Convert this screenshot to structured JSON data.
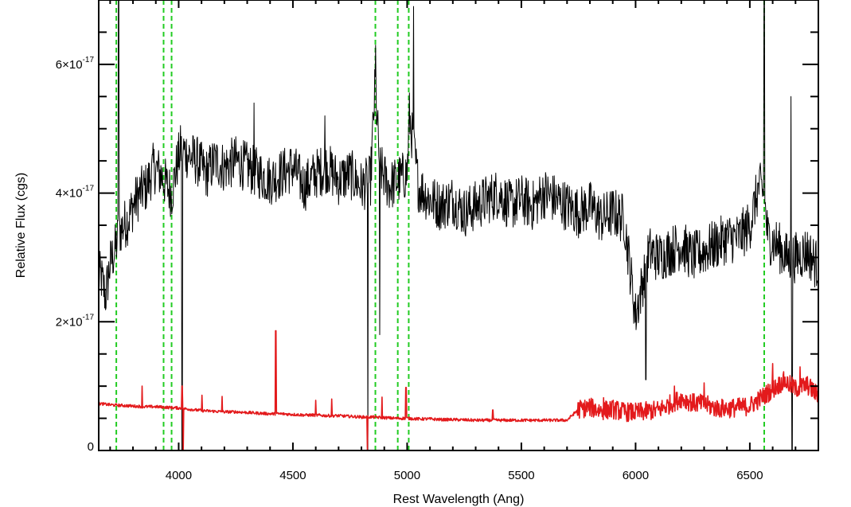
{
  "chart_data": {
    "type": "line",
    "title": "",
    "xlabel": "Rest Wavelength (Ang)",
    "ylabel": "Relative Flux (cgs)",
    "xlim": [
      3650,
      6800
    ],
    "ylim": [
      0,
      7e-17
    ],
    "x_ticks": [
      {
        "value": 4000,
        "label": "4000"
      },
      {
        "value": 4500,
        "label": "4500"
      },
      {
        "value": 5000,
        "label": "5000"
      },
      {
        "value": 5500,
        "label": "5500"
      },
      {
        "value": 6000,
        "label": "6000"
      },
      {
        "value": 6500,
        "label": "6500"
      }
    ],
    "y_ticks": [
      {
        "value": 0,
        "mantissa": "0",
        "exp": ""
      },
      {
        "value": 2e-17,
        "mantissa": "2×10",
        "exp": "-17"
      },
      {
        "value": 4e-17,
        "mantissa": "4×10",
        "exp": "-17"
      },
      {
        "value": 6e-17,
        "mantissa": "6×10",
        "exp": "-17"
      }
    ],
    "series": [
      {
        "color": "#000000",
        "x": [
          3660,
          3680,
          3700,
          3720,
          3740,
          3760,
          3780,
          3800,
          3830,
          3860,
          3890,
          3920,
          3950,
          3970,
          3990,
          4010,
          4040,
          4080,
          4120,
          4160,
          4200,
          4250,
          4300,
          4350,
          4400,
          4450,
          4500,
          4550,
          4600,
          4650,
          4700,
          4750,
          4800,
          4840,
          4860,
          4880,
          4920,
          4960,
          5000,
          5010,
          5050,
          5100,
          5150,
          5200,
          5250,
          5300,
          5350,
          5400,
          5450,
          5500,
          5550,
          5600,
          5650,
          5700,
          5750,
          5800,
          5850,
          5900,
          5950,
          6000,
          6030,
          6060,
          6100,
          6150,
          6200,
          6250,
          6300,
          6350,
          6400,
          6450,
          6500,
          6540,
          6560,
          6580,
          6620,
          6660,
          6700,
          6750,
          6790
        ],
        "y": [
          2.7e-17,
          2.4e-17,
          2.9e-17,
          3.1e-17,
          3.4e-17,
          3.5e-17,
          3.6e-17,
          3.8e-17,
          4e-17,
          4.1e-17,
          4.4e-17,
          4.3e-17,
          4.1e-17,
          4e-17,
          4.4e-17,
          4.7e-17,
          4.6e-17,
          4.5e-17,
          4.3e-17,
          4.5e-17,
          4.4e-17,
          4.5e-17,
          4.4e-17,
          4.3e-17,
          4.2e-17,
          4.3e-17,
          4.4e-17,
          4.1e-17,
          4.3e-17,
          4.4e-17,
          4.2e-17,
          4.3e-17,
          4.1e-17,
          4.2e-17,
          5.7e-17,
          4.4e-17,
          4.1e-17,
          4.2e-17,
          4.3e-17,
          5.2e-17,
          4.1e-17,
          3.9e-17,
          3.8e-17,
          3.9e-17,
          3.7e-17,
          3.8e-17,
          3.9e-17,
          4e-17,
          3.8e-17,
          3.9e-17,
          3.8e-17,
          4e-17,
          3.9e-17,
          3.8e-17,
          3.7e-17,
          3.8e-17,
          3.6e-17,
          3.7e-17,
          3.6e-17,
          2.1e-17,
          2.6e-17,
          3.1e-17,
          3e-17,
          3.1e-17,
          3.2e-17,
          3e-17,
          3.1e-17,
          3.2e-17,
          3.3e-17,
          3.3e-17,
          3.5e-17,
          4.1e-17,
          4e-17,
          3.3e-17,
          3.2e-17,
          3e-17,
          3e-17,
          3.1e-17,
          2.9e-17
        ],
        "noise": 4e-18,
        "spikes": [
          {
            "x": 3737,
            "y": 7e-17
          },
          {
            "x": 4015,
            "y": 0
          },
          {
            "x": 4330,
            "y": 5.4e-17
          },
          {
            "x": 4640,
            "y": 5.2e-17
          },
          {
            "x": 4828,
            "y": 0
          },
          {
            "x": 4862,
            "y": 6.3e-17
          },
          {
            "x": 4880,
            "y": 1.8e-17
          },
          {
            "x": 5028,
            "y": 6.9e-17
          },
          {
            "x": 6045,
            "y": 1.1e-17
          },
          {
            "x": 6563,
            "y": 7e-17
          },
          {
            "x": 6685,
            "y": 0
          },
          {
            "x": 6680,
            "y": 5.5e-17
          }
        ]
      },
      {
        "color": "#e31a1c",
        "x": [
          3650,
          3700,
          3750,
          3800,
          3850,
          3900,
          3950,
          4000,
          4050,
          4100,
          4150,
          4200,
          4250,
          4300,
          4350,
          4400,
          4450,
          4500,
          4550,
          4600,
          4650,
          4700,
          4750,
          4800,
          4850,
          4900,
          4950,
          5000,
          5050,
          5100,
          5150,
          5200,
          5300,
          5400,
          5500,
          5600,
          5700,
          5750,
          5800,
          5850,
          5900,
          5950,
          6000,
          6050,
          6100,
          6150,
          6200,
          6250,
          6300,
          6350,
          6400,
          6450,
          6500,
          6550,
          6600,
          6650,
          6700,
          6750,
          6800
        ],
        "y": [
          7.3e-18,
          7.1e-18,
          7e-18,
          6.9e-18,
          6.8e-18,
          6.8e-18,
          6.7e-18,
          6.6e-18,
          6.4e-18,
          6.2e-18,
          6.1e-18,
          6e-18,
          6e-18,
          5.9e-18,
          5.8e-18,
          5.7e-18,
          5.7e-18,
          5.6e-18,
          5.5e-18,
          5.5e-18,
          5.4e-18,
          5.4e-18,
          5.3e-18,
          5.2e-18,
          5.2e-18,
          5.1e-18,
          5e-18,
          5e-18,
          4.9e-18,
          4.9e-18,
          4.8e-18,
          4.8e-18,
          4.7e-18,
          4.7e-18,
          4.7e-18,
          4.7e-18,
          4.7e-18,
          6.4e-18,
          6.7e-18,
          6.2e-18,
          6.4e-18,
          6e-18,
          5.9e-18,
          6.1e-18,
          6.3e-18,
          7.2e-18,
          8.1e-18,
          7.4e-18,
          7.2e-18,
          6.6e-18,
          6.5e-18,
          6.7e-18,
          6.9e-18,
          8.2e-18,
          9.5e-18,
          1.08e-17,
          9.6e-18,
          1.02e-17,
          8.5e-18
        ],
        "spikes": [
          {
            "x": 3840,
            "y": 1e-17
          },
          {
            "x": 4015,
            "y": 1e-17
          },
          {
            "x": 4020,
            "y": 0
          },
          {
            "x": 4102,
            "y": 8.6e-18
          },
          {
            "x": 4190,
            "y": 8.4e-18
          },
          {
            "x": 4425,
            "y": 1.86e-17
          },
          {
            "x": 4600,
            "y": 7.8e-18
          },
          {
            "x": 4670,
            "y": 8e-18
          },
          {
            "x": 4826,
            "y": 0
          },
          {
            "x": 4890,
            "y": 8.3e-18
          },
          {
            "x": 4995,
            "y": 9.8e-18
          },
          {
            "x": 5375,
            "y": 6.3e-18
          },
          {
            "x": 5860,
            "y": 8.2e-18
          },
          {
            "x": 6170,
            "y": 1e-17
          },
          {
            "x": 6300,
            "y": 1.05e-17
          },
          {
            "x": 6600,
            "y": 1.35e-17
          },
          {
            "x": 6720,
            "y": 1.3e-17
          }
        ],
        "noise_region": [
          5740,
          6800
        ],
        "noise": 1.5e-18
      }
    ],
    "vlines": {
      "color": "#22cc22",
      "style": "dashed",
      "x": [
        3727,
        3934,
        3969,
        4861,
        4959,
        5007,
        6563
      ]
    },
    "grid": false,
    "legend": "none"
  }
}
